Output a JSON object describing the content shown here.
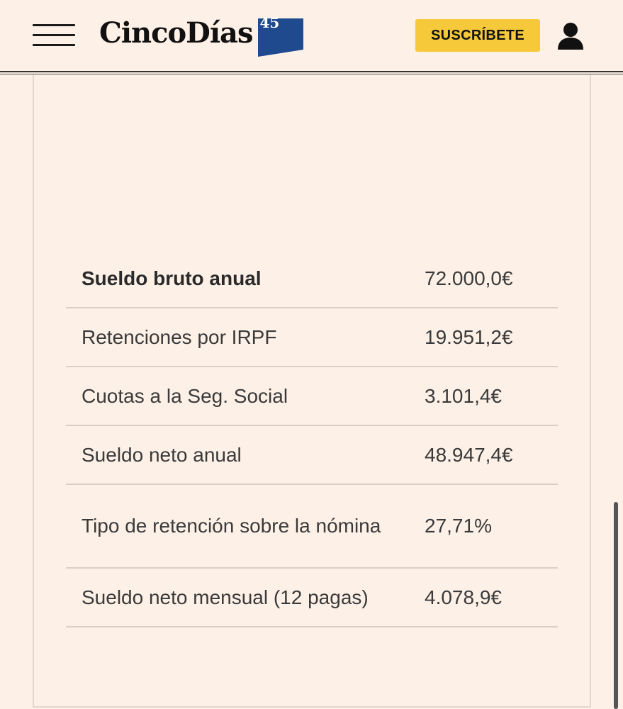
{
  "header": {
    "logo_text": "CincoDías",
    "logo_badge": "45",
    "subscribe_label": "SUSCRÍBETE",
    "brand_blue": "#1f4b8e",
    "accent_yellow": "#f5c93a"
  },
  "table": {
    "rows": [
      {
        "label": "Sueldo bruto anual",
        "value": "72.000,0€"
      },
      {
        "label": "Retenciones por IRPF",
        "value": "19.951,2€"
      },
      {
        "label": "Cuotas a la Seg. Social",
        "value": "3.101,4€"
      },
      {
        "label": "Sueldo neto anual",
        "value": "48.947,4€"
      },
      {
        "label": "Tipo de retención sobre la nómina",
        "value": "27,71%"
      },
      {
        "label": "Sueldo neto mensual (12 pagas)",
        "value": "4.078,9€"
      }
    ]
  },
  "icons": {
    "menu": "hamburger-menu-icon",
    "user": "user-icon"
  }
}
